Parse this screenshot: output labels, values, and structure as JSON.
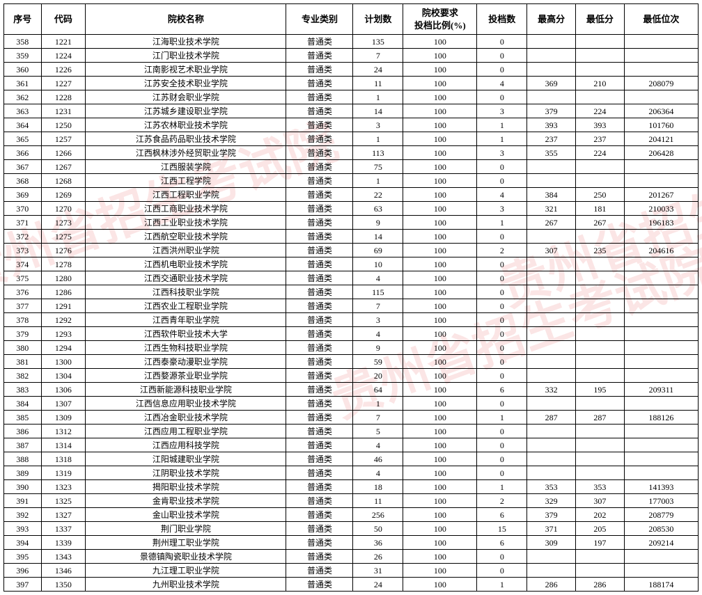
{
  "watermark_text": "贵州省招生考试院",
  "headers": {
    "seq": "序号",
    "code": "代码",
    "name": "院校名称",
    "type": "专业类别",
    "plan": "计划数",
    "ratio": "院校要求\n投档比例(%)",
    "filed": "投档数",
    "high": "最高分",
    "low": "最低分",
    "rank": "最低位次"
  },
  "rows": [
    {
      "seq": "358",
      "code": "1221",
      "name": "江海职业技术学院",
      "type": "普通类",
      "plan": "135",
      "ratio": "100",
      "filed": "0",
      "high": "",
      "low": "",
      "rank": ""
    },
    {
      "seq": "359",
      "code": "1224",
      "name": "江门职业技术学院",
      "type": "普通类",
      "plan": "7",
      "ratio": "100",
      "filed": "0",
      "high": "",
      "low": "",
      "rank": ""
    },
    {
      "seq": "360",
      "code": "1226",
      "name": "江南影视艺术职业学院",
      "type": "普通类",
      "plan": "24",
      "ratio": "100",
      "filed": "0",
      "high": "",
      "low": "",
      "rank": ""
    },
    {
      "seq": "361",
      "code": "1227",
      "name": "江苏安全技术职业学院",
      "type": "普通类",
      "plan": "11",
      "ratio": "100",
      "filed": "4",
      "high": "369",
      "low": "210",
      "rank": "208079"
    },
    {
      "seq": "362",
      "code": "1228",
      "name": "江苏财会职业学院",
      "type": "普通类",
      "plan": "1",
      "ratio": "100",
      "filed": "0",
      "high": "",
      "low": "",
      "rank": ""
    },
    {
      "seq": "363",
      "code": "1231",
      "name": "江苏城乡建设职业学院",
      "type": "普通类",
      "plan": "14",
      "ratio": "100",
      "filed": "3",
      "high": "379",
      "low": "224",
      "rank": "206364"
    },
    {
      "seq": "364",
      "code": "1250",
      "name": "江苏农林职业技术学院",
      "type": "普通类",
      "plan": "3",
      "ratio": "100",
      "filed": "1",
      "high": "393",
      "low": "393",
      "rank": "101760"
    },
    {
      "seq": "365",
      "code": "1257",
      "name": "江苏食品药品职业技术学院",
      "type": "普通类",
      "plan": "1",
      "ratio": "100",
      "filed": "1",
      "high": "237",
      "low": "237",
      "rank": "204121"
    },
    {
      "seq": "366",
      "code": "1266",
      "name": "江西枫林涉外经贸职业学院",
      "type": "普通类",
      "plan": "113",
      "ratio": "100",
      "filed": "3",
      "high": "355",
      "low": "224",
      "rank": "206428"
    },
    {
      "seq": "367",
      "code": "1267",
      "name": "江西服装学院",
      "type": "普通类",
      "plan": "75",
      "ratio": "100",
      "filed": "0",
      "high": "",
      "low": "",
      "rank": ""
    },
    {
      "seq": "368",
      "code": "1268",
      "name": "江西工程学院",
      "type": "普通类",
      "plan": "1",
      "ratio": "100",
      "filed": "0",
      "high": "",
      "low": "",
      "rank": ""
    },
    {
      "seq": "369",
      "code": "1269",
      "name": "江西工程职业学院",
      "type": "普通类",
      "plan": "22",
      "ratio": "100",
      "filed": "4",
      "high": "384",
      "low": "250",
      "rank": "201267"
    },
    {
      "seq": "370",
      "code": "1270",
      "name": "江西工商职业技术学院",
      "type": "普通类",
      "plan": "63",
      "ratio": "100",
      "filed": "3",
      "high": "321",
      "low": "181",
      "rank": "210033"
    },
    {
      "seq": "371",
      "code": "1273",
      "name": "江西工业职业技术学院",
      "type": "普通类",
      "plan": "9",
      "ratio": "100",
      "filed": "1",
      "high": "267",
      "low": "267",
      "rank": "196183"
    },
    {
      "seq": "372",
      "code": "1275",
      "name": "江西航空职业技术学院",
      "type": "普通类",
      "plan": "14",
      "ratio": "100",
      "filed": "0",
      "high": "",
      "low": "",
      "rank": ""
    },
    {
      "seq": "373",
      "code": "1276",
      "name": "江西洪州职业学院",
      "type": "普通类",
      "plan": "69",
      "ratio": "100",
      "filed": "2",
      "high": "307",
      "low": "235",
      "rank": "204616"
    },
    {
      "seq": "374",
      "code": "1278",
      "name": "江西机电职业技术学院",
      "type": "普通类",
      "plan": "10",
      "ratio": "100",
      "filed": "0",
      "high": "",
      "low": "",
      "rank": ""
    },
    {
      "seq": "375",
      "code": "1280",
      "name": "江西交通职业技术学院",
      "type": "普通类",
      "plan": "4",
      "ratio": "100",
      "filed": "0",
      "high": "",
      "low": "",
      "rank": ""
    },
    {
      "seq": "376",
      "code": "1286",
      "name": "江西科技职业学院",
      "type": "普通类",
      "plan": "115",
      "ratio": "100",
      "filed": "0",
      "high": "",
      "low": "",
      "rank": ""
    },
    {
      "seq": "377",
      "code": "1291",
      "name": "江西农业工程职业学院",
      "type": "普通类",
      "plan": "7",
      "ratio": "100",
      "filed": "0",
      "high": "",
      "low": "",
      "rank": ""
    },
    {
      "seq": "378",
      "code": "1292",
      "name": "江西青年职业学院",
      "type": "普通类",
      "plan": "3",
      "ratio": "100",
      "filed": "0",
      "high": "",
      "low": "",
      "rank": ""
    },
    {
      "seq": "379",
      "code": "1293",
      "name": "江西软件职业技术大学",
      "type": "普通类",
      "plan": "4",
      "ratio": "100",
      "filed": "0",
      "high": "",
      "low": "",
      "rank": ""
    },
    {
      "seq": "380",
      "code": "1294",
      "name": "江西生物科技职业学院",
      "type": "普通类",
      "plan": "9",
      "ratio": "100",
      "filed": "0",
      "high": "",
      "low": "",
      "rank": ""
    },
    {
      "seq": "381",
      "code": "1300",
      "name": "江西泰豪动漫职业学院",
      "type": "普通类",
      "plan": "59",
      "ratio": "100",
      "filed": "0",
      "high": "",
      "low": "",
      "rank": ""
    },
    {
      "seq": "382",
      "code": "1304",
      "name": "江西婺源茶业职业学院",
      "type": "普通类",
      "plan": "20",
      "ratio": "100",
      "filed": "0",
      "high": "",
      "low": "",
      "rank": ""
    },
    {
      "seq": "383",
      "code": "1306",
      "name": "江西新能源科技职业学院",
      "type": "普通类",
      "plan": "64",
      "ratio": "100",
      "filed": "6",
      "high": "332",
      "low": "195",
      "rank": "209311"
    },
    {
      "seq": "384",
      "code": "1307",
      "name": "江西信息应用职业技术学院",
      "type": "普通类",
      "plan": "1",
      "ratio": "100",
      "filed": "0",
      "high": "",
      "low": "",
      "rank": ""
    },
    {
      "seq": "385",
      "code": "1309",
      "name": "江西冶金职业技术学院",
      "type": "普通类",
      "plan": "7",
      "ratio": "100",
      "filed": "1",
      "high": "287",
      "low": "287",
      "rank": "188126"
    },
    {
      "seq": "386",
      "code": "1312",
      "name": "江西应用工程职业学院",
      "type": "普通类",
      "plan": "5",
      "ratio": "100",
      "filed": "0",
      "high": "",
      "low": "",
      "rank": ""
    },
    {
      "seq": "387",
      "code": "1314",
      "name": "江西应用科技学院",
      "type": "普通类",
      "plan": "4",
      "ratio": "100",
      "filed": "0",
      "high": "",
      "low": "",
      "rank": ""
    },
    {
      "seq": "388",
      "code": "1318",
      "name": "江阳城建职业学院",
      "type": "普通类",
      "plan": "46",
      "ratio": "100",
      "filed": "0",
      "high": "",
      "low": "",
      "rank": ""
    },
    {
      "seq": "389",
      "code": "1319",
      "name": "江阴职业技术学院",
      "type": "普通类",
      "plan": "4",
      "ratio": "100",
      "filed": "0",
      "high": "",
      "low": "",
      "rank": ""
    },
    {
      "seq": "390",
      "code": "1323",
      "name": "揭阳职业技术学院",
      "type": "普通类",
      "plan": "18",
      "ratio": "100",
      "filed": "1",
      "high": "353",
      "low": "353",
      "rank": "141393"
    },
    {
      "seq": "391",
      "code": "1325",
      "name": "金肯职业技术学院",
      "type": "普通类",
      "plan": "11",
      "ratio": "100",
      "filed": "2",
      "high": "329",
      "low": "307",
      "rank": "177003"
    },
    {
      "seq": "392",
      "code": "1327",
      "name": "金山职业技术学院",
      "type": "普通类",
      "plan": "256",
      "ratio": "100",
      "filed": "6",
      "high": "379",
      "low": "202",
      "rank": "208779"
    },
    {
      "seq": "393",
      "code": "1337",
      "name": "荆门职业学院",
      "type": "普通类",
      "plan": "50",
      "ratio": "100",
      "filed": "15",
      "high": "371",
      "low": "205",
      "rank": "208530"
    },
    {
      "seq": "394",
      "code": "1339",
      "name": "荆州理工职业学院",
      "type": "普通类",
      "plan": "36",
      "ratio": "100",
      "filed": "6",
      "high": "309",
      "low": "197",
      "rank": "209214"
    },
    {
      "seq": "395",
      "code": "1343",
      "name": "景德镇陶瓷职业技术学院",
      "type": "普通类",
      "plan": "26",
      "ratio": "100",
      "filed": "0",
      "high": "",
      "low": "",
      "rank": ""
    },
    {
      "seq": "396",
      "code": "1346",
      "name": "九江理工职业学院",
      "type": "普通类",
      "plan": "31",
      "ratio": "100",
      "filed": "0",
      "high": "",
      "low": "",
      "rank": ""
    },
    {
      "seq": "397",
      "code": "1350",
      "name": "九州职业技术学院",
      "type": "普通类",
      "plan": "24",
      "ratio": "100",
      "filed": "1",
      "high": "286",
      "low": "286",
      "rank": "188174"
    }
  ]
}
